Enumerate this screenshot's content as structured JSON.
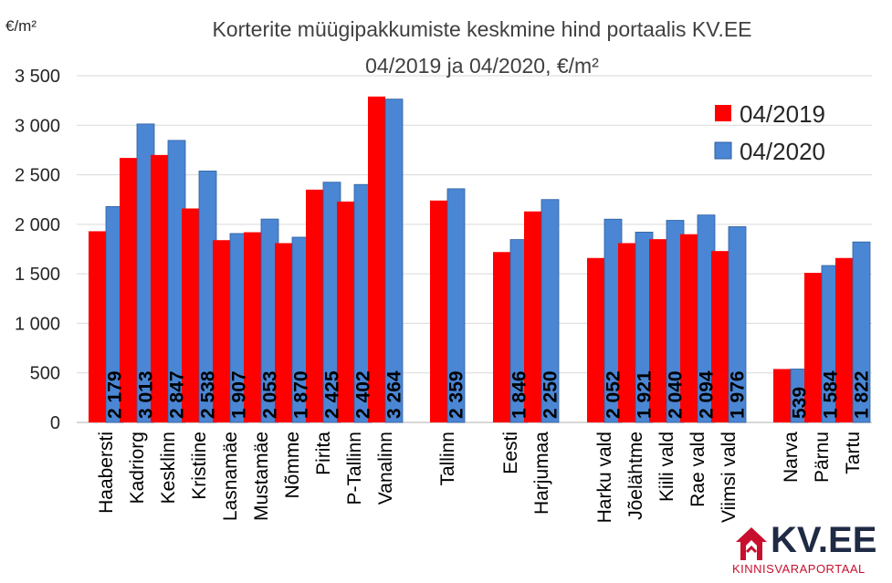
{
  "chart_data": {
    "type": "bar",
    "title_lines": [
      "Korterite müügipakkumiste keskmine hind portaalis KV.EE",
      "04/2019 ja 04/2020, €/m²"
    ],
    "ylabel": "€/m²",
    "ylim": [
      0,
      3500
    ],
    "yticks": [
      0,
      500,
      1000,
      1500,
      2000,
      2500,
      3000,
      3500
    ],
    "ytick_labels": [
      "0",
      "500",
      "1 000",
      "1 500",
      "2 000",
      "2 500",
      "3 000",
      "3 500"
    ],
    "grid": true,
    "legend_position": "top-right",
    "series": [
      {
        "name": "04/2019",
        "color": "#ff0000",
        "values": [
          1930,
          2670,
          2700,
          2160,
          1840,
          1920,
          1810,
          2350,
          2230,
          3290,
          2240,
          1720,
          2130,
          1660,
          1810,
          1850,
          1900,
          1730,
          539,
          1510,
          1660
        ]
      },
      {
        "name": "04/2020",
        "color": "#4a86d4",
        "values": [
          2179,
          3013,
          2847,
          2538,
          1907,
          2053,
          1870,
          2425,
          2402,
          3264,
          2359,
          1846,
          2250,
          2052,
          1921,
          2040,
          2094,
          1976,
          539,
          1584,
          1822
        ]
      }
    ],
    "categories": [
      "Haabersti",
      "Kadriorg",
      "Kesklinn",
      "Kristiine",
      "Lasnamäe",
      "Mustamäe",
      "Nõmme",
      "Pirita",
      "P-Tallinn",
      "Vanalinn",
      "Tallinn",
      "Eesti",
      "Harjumaa",
      "Harku vald",
      "Jõelähtme",
      "Kiili vald",
      "Rae vald",
      "Viimsi vald",
      "Narva",
      "Pärnu",
      "Tartu"
    ],
    "data_labels": [
      "2 179",
      "3 013",
      "2 847",
      "2 538",
      "1 907",
      "2 053",
      "1 870",
      "2 425",
      "2 402",
      "3 264",
      "2 359",
      "1 846",
      "2 250",
      "2 052",
      "1 921",
      "2 040",
      "2 094",
      "1 976",
      "539",
      "1 584",
      "1 822"
    ]
  },
  "logo": {
    "brand": "KV.EE",
    "tagline": "KINNISVARAPORTAAL",
    "icon": "house-icon",
    "colors": {
      "brand": "#1f2a44",
      "tagline": "#c8102e",
      "icon": "#c8102e"
    }
  }
}
